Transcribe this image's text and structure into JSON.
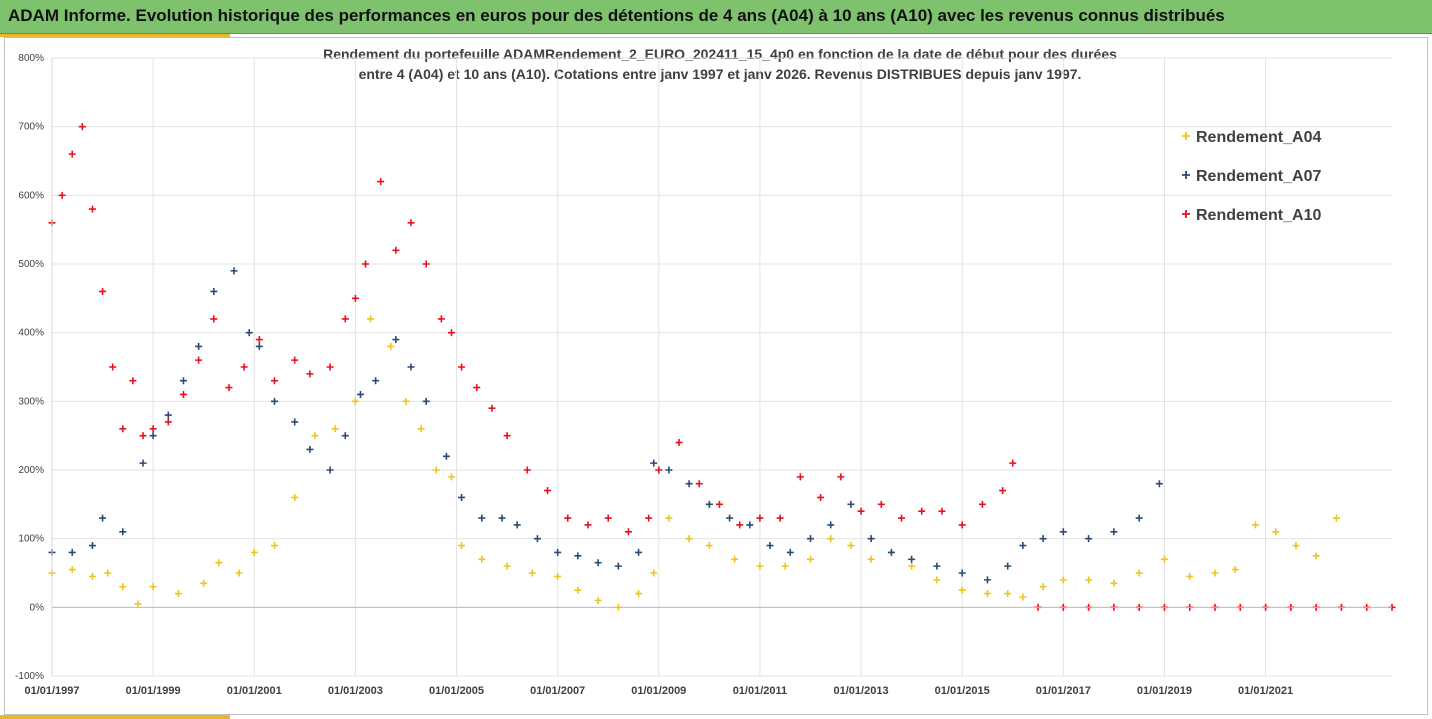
{
  "header": {
    "title": "ADAM Informe. Evolution historique des performances en euros pour des détentions de 4 ans (A04) à 10 ans (A10) avec les revenus connus distribués"
  },
  "chart_data": {
    "type": "scatter",
    "title_line1": "Rendement du portefeuille ADAMRendement_2_EURO_202411_15_4p0  en fonction de la date de début pour des durées",
    "title_line2": "entre 4 (A04) et 10 ans (A10). Cotations entre janv 1997 et janv 2026. Revenus DISTRIBUES depuis janv 1997.",
    "xlabel": "",
    "ylabel": "",
    "xlim": [
      1997.0,
      2023.5
    ],
    "ylim": [
      -100,
      800
    ],
    "grid": true,
    "legend_position": "top-right",
    "y_ticks": [
      "-100%",
      "0%",
      "100%",
      "200%",
      "300%",
      "400%",
      "500%",
      "600%",
      "700%",
      "800%"
    ],
    "y_tick_values": [
      -100,
      0,
      100,
      200,
      300,
      400,
      500,
      600,
      700,
      800
    ],
    "x_ticks": [
      "01/01/1997",
      "01/01/1999",
      "01/01/2001",
      "01/01/2003",
      "01/01/2005",
      "01/01/2007",
      "01/01/2009",
      "01/01/2011",
      "01/01/2013",
      "01/01/2015",
      "01/01/2017",
      "01/01/2019",
      "01/01/2021"
    ],
    "x_tick_values": [
      1997,
      1999,
      2001,
      2003,
      2005,
      2007,
      2009,
      2011,
      2013,
      2015,
      2017,
      2019,
      2021
    ],
    "series": [
      {
        "name": "Rendement_A04",
        "color": "#f2c31d",
        "marker": "plus",
        "x": [
          1997.0,
          1997.4,
          1997.8,
          1998.1,
          1998.4,
          1998.7,
          1999.0,
          1999.5,
          2000.0,
          2000.3,
          2000.7,
          2001.0,
          2001.4,
          2001.8,
          2002.2,
          2002.6,
          2003.0,
          2003.3,
          2003.7,
          2004.0,
          2004.3,
          2004.6,
          2004.9,
          2005.1,
          2005.5,
          2006.0,
          2006.5,
          2007.0,
          2007.4,
          2007.8,
          2008.2,
          2008.6,
          2008.9,
          2009.2,
          2009.6,
          2010.0,
          2010.5,
          2011.0,
          2011.5,
          2012.0,
          2012.4,
          2012.8,
          2013.2,
          2013.6,
          2014.0,
          2014.5,
          2015.0,
          2015.5,
          2015.9,
          2016.2,
          2016.6,
          2017.0,
          2017.5,
          2018.0,
          2018.5,
          2019.0,
          2019.5,
          2020.0,
          2020.4,
          2020.8,
          2021.2,
          2021.6,
          2022.0,
          2022.4
        ],
        "y": [
          50,
          55,
          45,
          50,
          30,
          5,
          30,
          20,
          35,
          65,
          50,
          80,
          90,
          160,
          250,
          260,
          300,
          420,
          380,
          300,
          260,
          200,
          190,
          90,
          70,
          60,
          50,
          45,
          25,
          10,
          0,
          20,
          50,
          130,
          100,
          90,
          70,
          60,
          60,
          70,
          100,
          90,
          70,
          80,
          60,
          40,
          25,
          20,
          20,
          15,
          30,
          40,
          40,
          35,
          50,
          70,
          45,
          50,
          55,
          120,
          110,
          90,
          75,
          130
        ]
      },
      {
        "name": "Rendement_A07",
        "color": "#2c4a73",
        "marker": "plus",
        "x": [
          1997.0,
          1997.4,
          1997.8,
          1998.0,
          1998.4,
          1998.8,
          1999.0,
          1999.3,
          1999.6,
          1999.9,
          2000.2,
          2000.6,
          2000.9,
          2001.1,
          2001.4,
          2001.8,
          2002.1,
          2002.5,
          2002.8,
          2003.1,
          2003.4,
          2003.8,
          2004.1,
          2004.4,
          2004.8,
          2005.1,
          2005.5,
          2005.9,
          2006.2,
          2006.6,
          2007.0,
          2007.4,
          2007.8,
          2008.2,
          2008.6,
          2008.9,
          2009.2,
          2009.6,
          2010.0,
          2010.4,
          2010.8,
          2011.2,
          2011.6,
          2012.0,
          2012.4,
          2012.8,
          2013.2,
          2013.6,
          2014.0,
          2014.5,
          2015.0,
          2015.5,
          2015.9,
          2016.2,
          2016.6,
          2017.0,
          2017.5,
          2018.0,
          2018.5,
          2018.9
        ],
        "y": [
          80,
          80,
          90,
          130,
          110,
          210,
          250,
          280,
          330,
          380,
          460,
          490,
          400,
          380,
          300,
          270,
          230,
          200,
          250,
          310,
          330,
          390,
          350,
          300,
          220,
          160,
          130,
          130,
          120,
          100,
          80,
          75,
          65,
          60,
          80,
          210,
          200,
          180,
          150,
          130,
          120,
          90,
          80,
          100,
          120,
          150,
          100,
          80,
          70,
          60,
          50,
          40,
          60,
          90,
          100,
          110,
          100,
          110,
          130,
          180
        ]
      },
      {
        "name": "Rendement_A10",
        "color": "#e8111b",
        "marker": "plus",
        "x": [
          1997.0,
          1997.2,
          1997.4,
          1997.6,
          1997.8,
          1998.0,
          1998.2,
          1998.4,
          1998.6,
          1998.8,
          1999.0,
          1999.3,
          1999.6,
          1999.9,
          2000.2,
          2000.5,
          2000.8,
          2001.1,
          2001.4,
          2001.8,
          2002.1,
          2002.5,
          2002.8,
          2003.0,
          2003.2,
          2003.5,
          2003.8,
          2004.1,
          2004.4,
          2004.7,
          2004.9,
          2005.1,
          2005.4,
          2005.7,
          2006.0,
          2006.4,
          2006.8,
          2007.2,
          2007.6,
          2008.0,
          2008.4,
          2008.8,
          2009.0,
          2009.4,
          2009.8,
          2010.2,
          2010.6,
          2011.0,
          2011.4,
          2011.8,
          2012.2,
          2012.6,
          2013.0,
          2013.4,
          2013.8,
          2014.2,
          2014.6,
          2015.0,
          2015.4,
          2015.8,
          2016.0,
          2016.5,
          2017.0,
          2017.5,
          2018.0,
          2018.5,
          2019.0,
          2019.5,
          2020.0,
          2020.5,
          2021.0,
          2021.5,
          2022.0,
          2022.5,
          2023.0,
          2023.5
        ],
        "y": [
          560,
          600,
          660,
          700,
          580,
          460,
          350,
          260,
          330,
          250,
          260,
          270,
          310,
          360,
          420,
          320,
          350,
          390,
          330,
          360,
          340,
          350,
          420,
          450,
          500,
          620,
          520,
          560,
          500,
          420,
          400,
          350,
          320,
          290,
          250,
          200,
          170,
          130,
          120,
          130,
          110,
          130,
          200,
          240,
          180,
          150,
          120,
          130,
          130,
          190,
          160,
          190,
          140,
          150,
          130,
          140,
          140,
          120,
          150,
          170,
          210,
          0,
          0,
          0,
          0,
          0,
          0,
          0,
          0,
          0,
          0,
          0,
          0,
          0,
          0,
          0
        ]
      }
    ]
  }
}
